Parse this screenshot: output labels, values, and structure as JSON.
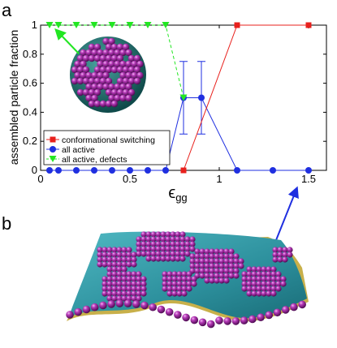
{
  "panels": {
    "a": "a",
    "b": "b"
  },
  "chart_data": {
    "type": "line",
    "xlabel": "ϵgg",
    "xlabel_main": "ϵ",
    "xlabel_sub": "gg",
    "ylabel": "assembled particle fraction",
    "xlim": [
      0,
      1.6
    ],
    "ylim": [
      0,
      1
    ],
    "xticks": [
      0,
      0.5,
      1,
      1.5
    ],
    "xtick_labels": [
      "0",
      "0.5",
      "1",
      "1.5"
    ],
    "yticks": [
      0,
      0.2,
      0.4,
      0.6,
      0.8,
      1
    ],
    "ytick_labels": [
      "0",
      "0.2",
      "0.4",
      "0.6",
      "0.8",
      "1"
    ],
    "legend_position": "lower-left",
    "grid": false,
    "series": [
      {
        "name": "conformational switching",
        "color": "#e8201c",
        "marker": "square",
        "line": "solid",
        "x": [
          0.8,
          1.1,
          1.5
        ],
        "y": [
          0,
          1,
          1
        ]
      },
      {
        "name": "all active",
        "color": "#1f2fe0",
        "marker": "circle",
        "line": "solid",
        "x": [
          0.05,
          0.1,
          0.2,
          0.3,
          0.4,
          0.5,
          0.6,
          0.7,
          0.8,
          0.9,
          1.1,
          1.3,
          1.5
        ],
        "y": [
          0,
          0,
          0,
          0,
          0,
          0,
          0,
          0,
          0.5,
          0.5,
          0,
          0,
          0
        ],
        "error_bars": [
          {
            "x": 0.8,
            "low": 0.25,
            "high": 0.75
          },
          {
            "x": 0.9,
            "low": 0.25,
            "high": 0.75
          }
        ]
      },
      {
        "name": "all active, defects",
        "color": "#22e622",
        "marker": "triangle-down",
        "line": "dashed",
        "x": [
          0.05,
          0.1,
          0.2,
          0.3,
          0.4,
          0.5,
          0.6,
          0.7,
          0.8
        ],
        "y": [
          1,
          1,
          1,
          1,
          1,
          1,
          1,
          1,
          0.5
        ]
      }
    ]
  }
}
